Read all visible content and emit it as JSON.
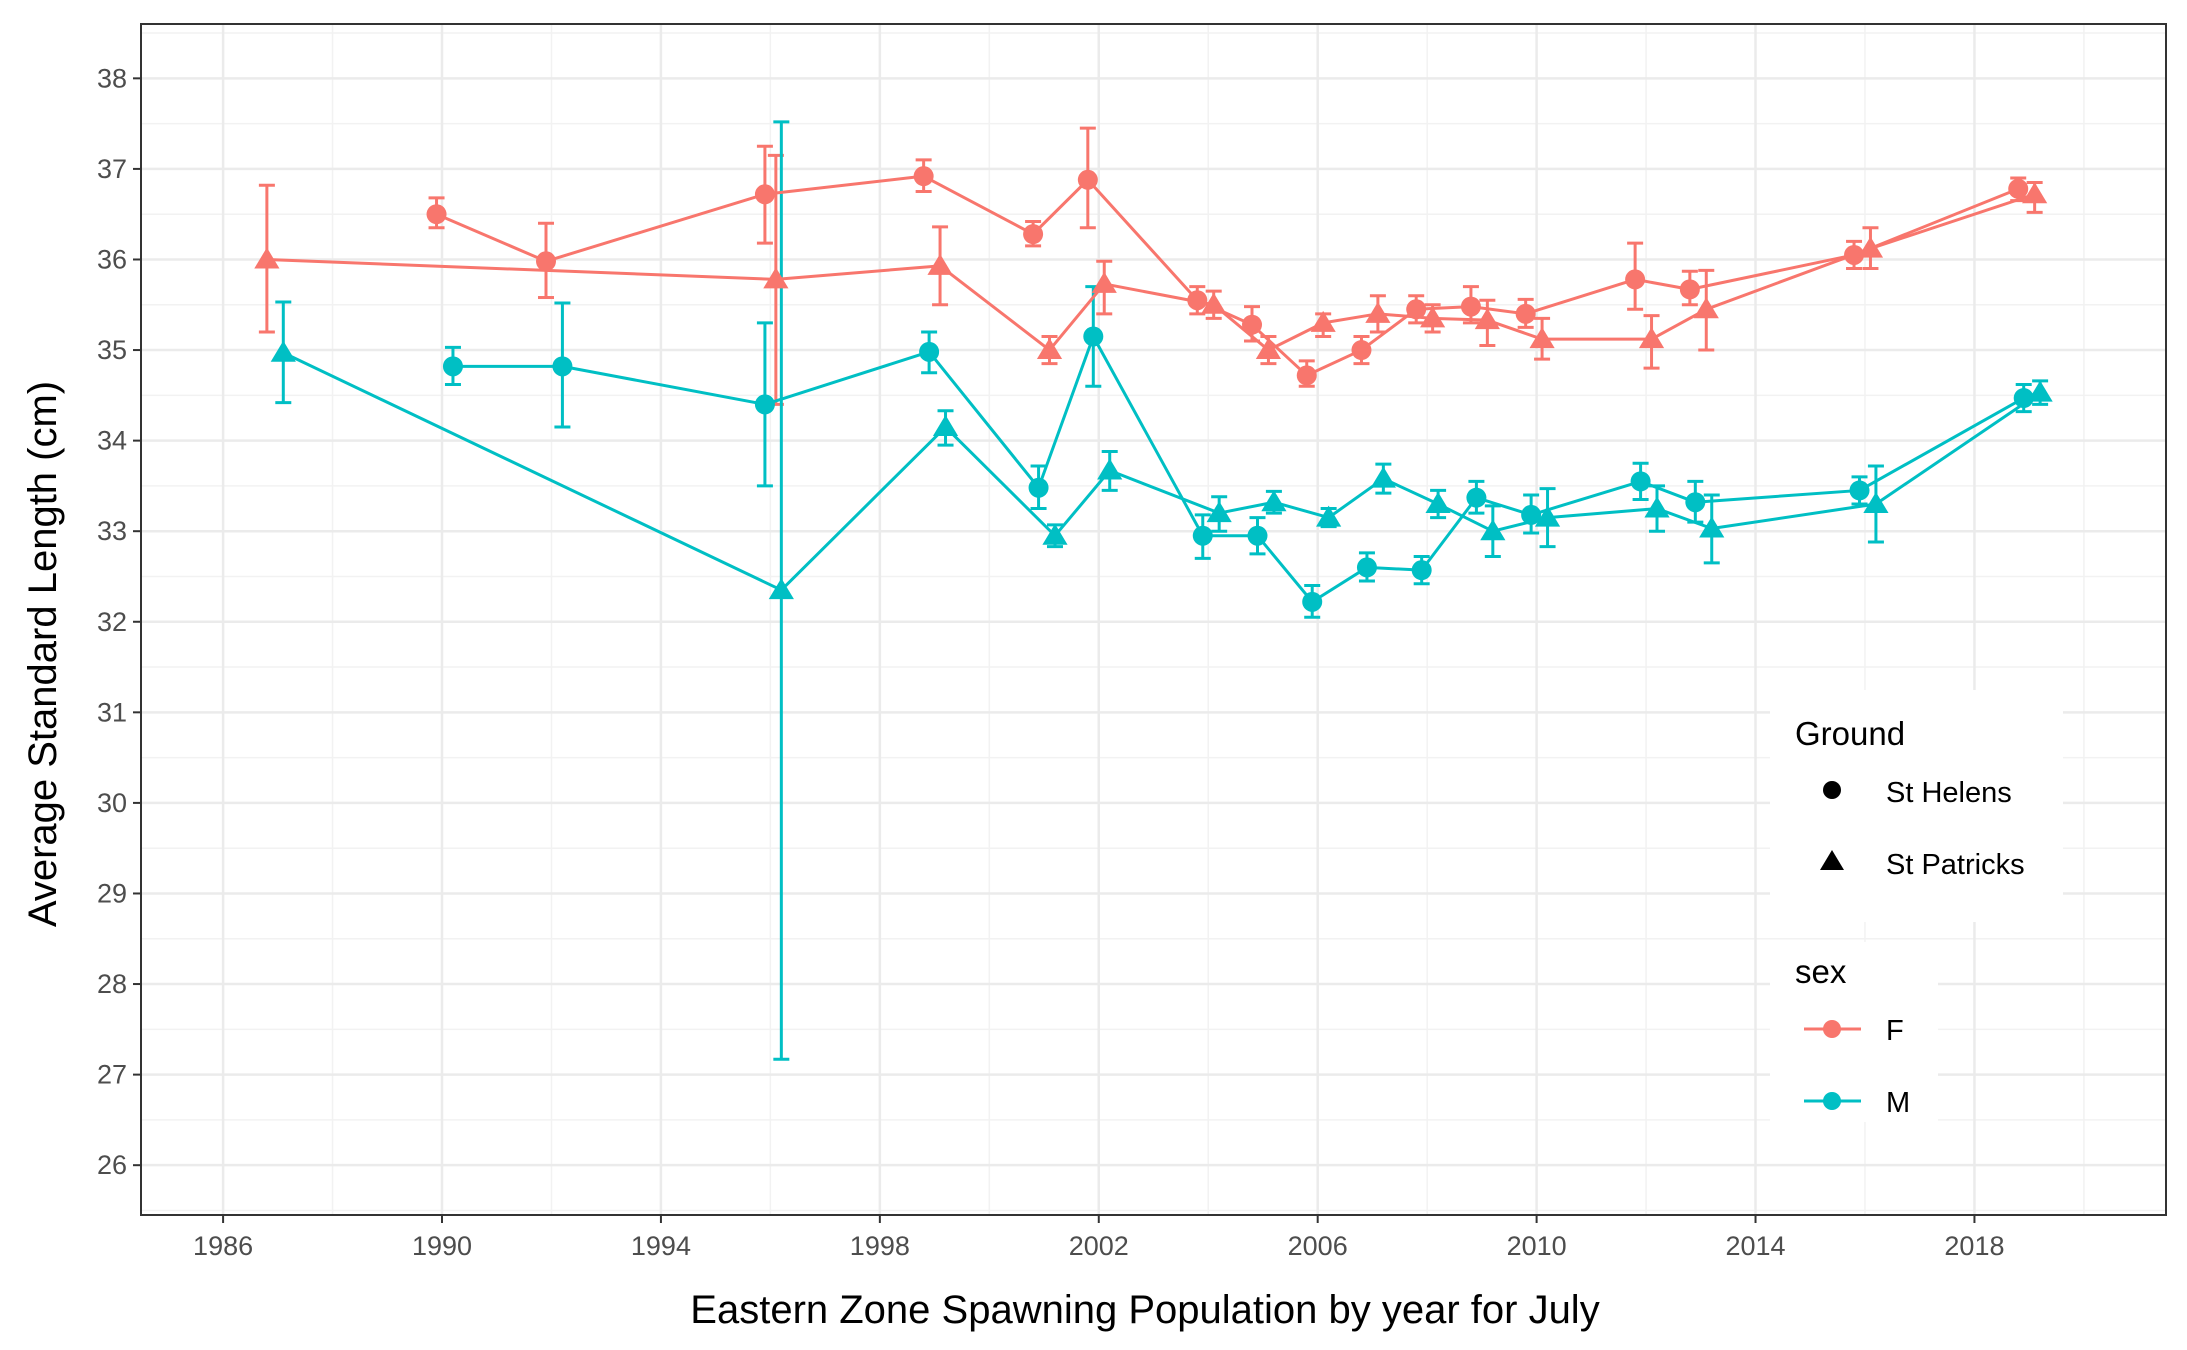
{
  "chart_data": {
    "type": "line",
    "title": "",
    "xlabel": "Eastern Zone Spawning Population by year for July",
    "ylabel": "Average Standard Length (cm)",
    "xlim": [
      1984.5,
      2021.5
    ],
    "ylim": [
      25.45,
      38.6
    ],
    "x_ticks": [
      1986,
      1990,
      1994,
      1998,
      2002,
      2006,
      2010,
      2014,
      2018
    ],
    "y_ticks": [
      26,
      27,
      28,
      29,
      30,
      31,
      32,
      33,
      34,
      35,
      36,
      37,
      38
    ],
    "grid": true,
    "theme": "bw",
    "colors": {
      "F": "#F8766D",
      "M": "#00BFC4"
    },
    "legend": {
      "placement": "right-inside",
      "shape_title": "Ground",
      "shape_items": [
        {
          "label": "St Helens",
          "shape": "circle"
        },
        {
          "label": "St Patricks",
          "shape": "triangle"
        }
      ],
      "color_title": "sex",
      "color_items": [
        {
          "label": "F",
          "color": "#F8766D"
        },
        {
          "label": "M",
          "color": "#00BFC4"
        }
      ]
    },
    "series": [
      {
        "sex": "F",
        "ground": "St Helens",
        "shape": "circle",
        "color": "#F8766D",
        "x": [
          1989.9,
          1991.9,
          1995.9,
          1998.8,
          2000.8,
          2001.8,
          2003.8,
          2004.8,
          2005.8,
          2006.8,
          2007.8,
          2008.8,
          2009.8,
          2011.8,
          2012.8,
          2015.8,
          2018.8
        ],
        "y": [
          36.5,
          35.98,
          36.72,
          36.92,
          36.28,
          36.88,
          35.55,
          35.28,
          34.72,
          35.0,
          35.45,
          35.48,
          35.4,
          35.78,
          35.67,
          36.05,
          36.78
        ],
        "err_low": [
          36.35,
          35.58,
          36.18,
          36.75,
          36.15,
          36.35,
          35.4,
          35.1,
          34.6,
          34.85,
          35.3,
          35.3,
          35.25,
          35.45,
          35.5,
          35.9,
          36.65
        ],
        "err_high": [
          36.68,
          36.4,
          37.25,
          37.1,
          36.42,
          37.45,
          35.7,
          35.48,
          34.88,
          35.15,
          35.6,
          35.7,
          35.56,
          36.18,
          35.87,
          36.2,
          36.9
        ]
      },
      {
        "sex": "F",
        "ground": "St Patricks",
        "shape": "triangle",
        "color": "#F8766D",
        "x": [
          1986.8,
          1996.1,
          1999.1,
          2001.1,
          2002.1,
          2004.1,
          2005.1,
          2006.1,
          2007.1,
          2008.1,
          2009.1,
          2010.1,
          2012.1,
          2013.1,
          2016.1,
          2019.1
        ],
        "y": [
          36.0,
          35.78,
          35.93,
          35.0,
          35.73,
          35.5,
          35.0,
          35.3,
          35.4,
          35.35,
          35.33,
          35.12,
          35.12,
          35.45,
          36.12,
          36.72
        ],
        "err_low": [
          35.2,
          34.4,
          35.5,
          34.85,
          35.4,
          35.35,
          34.85,
          35.15,
          35.2,
          35.2,
          35.05,
          34.9,
          34.8,
          35.0,
          35.9,
          36.52
        ],
        "err_high": [
          36.82,
          37.15,
          36.36,
          35.15,
          35.98,
          35.65,
          35.15,
          35.4,
          35.6,
          35.5,
          35.55,
          35.35,
          35.38,
          35.88,
          36.35,
          36.85
        ]
      },
      {
        "sex": "M",
        "ground": "St Helens",
        "shape": "circle",
        "color": "#00BFC4",
        "x": [
          1990.2,
          1992.2,
          1995.9,
          1998.9,
          2000.9,
          2001.9,
          2003.9,
          2004.9,
          2005.9,
          2006.9,
          2007.9,
          2008.9,
          2009.9,
          2011.9,
          2012.9,
          2015.9,
          2018.9
        ],
        "y": [
          34.82,
          34.82,
          34.4,
          34.98,
          33.48,
          35.15,
          32.95,
          32.95,
          32.22,
          32.6,
          32.57,
          33.37,
          33.18,
          33.55,
          33.32,
          33.45,
          34.47
        ],
        "err_low": [
          34.62,
          34.15,
          33.5,
          34.75,
          33.25,
          34.6,
          32.7,
          32.75,
          32.05,
          32.45,
          32.42,
          33.2,
          32.98,
          33.35,
          33.1,
          33.3,
          34.32
        ],
        "err_high": [
          35.03,
          35.52,
          35.3,
          35.2,
          33.72,
          35.7,
          33.18,
          33.15,
          32.4,
          32.76,
          32.72,
          33.55,
          33.4,
          33.75,
          33.55,
          33.6,
          34.62
        ]
      },
      {
        "sex": "M",
        "ground": "St Patricks",
        "shape": "triangle",
        "color": "#00BFC4",
        "x": [
          1987.1,
          1996.2,
          1999.2,
          2001.2,
          2002.2,
          2004.2,
          2005.2,
          2006.2,
          2007.2,
          2008.2,
          2009.2,
          2010.2,
          2012.2,
          2013.2,
          2016.2,
          2019.2
        ],
        "y": [
          34.97,
          32.35,
          34.15,
          32.95,
          33.67,
          33.2,
          33.32,
          33.15,
          33.58,
          33.3,
          33.0,
          33.15,
          33.25,
          33.03,
          33.3,
          34.53
        ],
        "err_low": [
          34.42,
          27.17,
          33.95,
          32.83,
          33.45,
          33.0,
          33.2,
          33.05,
          33.42,
          33.15,
          32.72,
          32.83,
          33.0,
          32.65,
          32.88,
          34.4
        ],
        "err_high": [
          35.53,
          37.52,
          34.33,
          33.07,
          33.88,
          33.38,
          33.44,
          33.25,
          33.74,
          33.45,
          33.28,
          33.47,
          33.5,
          33.4,
          33.72,
          34.66
        ]
      }
    ]
  }
}
